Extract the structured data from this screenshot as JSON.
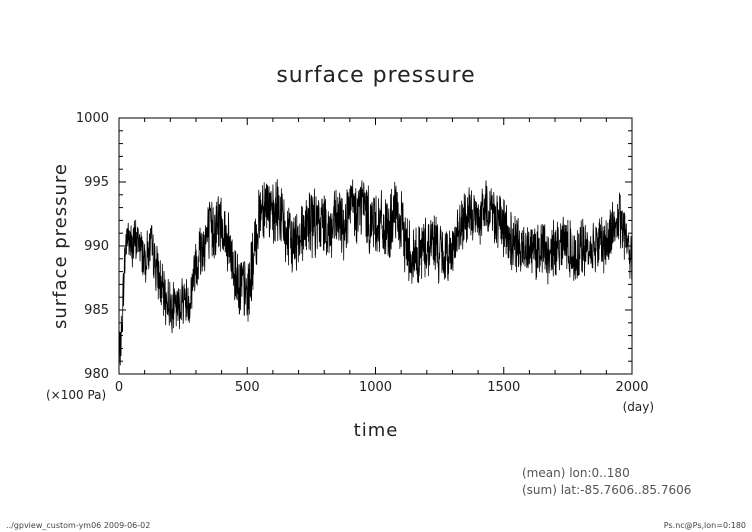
{
  "chart_data": {
    "type": "line",
    "title": "surface pressure",
    "xlabel": "time",
    "ylabel": "surface pressure",
    "xunit": "(day)",
    "yunit": "(×100 Pa)",
    "xlim": [
      0,
      2000
    ],
    "ylim": [
      980,
      1000
    ],
    "x_ticks": [
      "0",
      "500",
      "1000",
      "1500",
      "2000"
    ],
    "y_ticks": [
      "980",
      "985",
      "990",
      "995",
      "1000"
    ],
    "grid": false,
    "legend": "none",
    "series": [
      {
        "x": [
          0,
          10,
          20,
          30,
          50,
          75,
          100,
          125,
          150,
          175,
          200,
          225,
          250,
          275,
          300,
          325,
          350,
          375,
          400,
          425,
          450,
          475,
          500,
          525,
          550,
          575,
          600,
          625,
          650,
          675,
          700,
          725,
          750,
          775,
          800,
          825,
          850,
          875,
          900,
          925,
          950,
          975,
          1000,
          1025,
          1050,
          1075,
          1100,
          1125,
          1150,
          1175,
          1200,
          1225,
          1250,
          1275,
          1300,
          1325,
          1350,
          1375,
          1400,
          1425,
          1450,
          1475,
          1500,
          1525,
          1550,
          1575,
          1600,
          1625,
          1650,
          1675,
          1700,
          1725,
          1750,
          1775,
          1800,
          1825,
          1850,
          1875,
          1900,
          1925,
          1950,
          1975,
          2000
        ],
        "y": [
          981,
          983,
          988,
          991,
          990,
          990.5,
          989,
          990,
          988,
          986,
          985.5,
          985,
          986,
          985.5,
          989,
          990,
          991,
          991.5,
          992,
          990,
          988,
          987,
          986,
          989,
          993,
          993.5,
          992,
          993,
          991,
          990,
          991,
          991.5,
          992,
          991.5,
          992,
          991,
          992,
          991.5,
          993,
          992.5,
          993.5,
          992,
          992,
          991.5,
          991,
          992.5,
          991.5,
          990,
          989,
          989.5,
          990,
          990.5,
          989.5,
          989,
          990,
          991,
          992,
          992.5,
          992,
          993,
          993,
          992,
          991.5,
          990.5,
          990,
          989.5,
          990.5,
          989.5,
          990,
          989,
          990,
          990.5,
          990,
          989,
          990,
          989.5,
          990,
          990.5,
          990,
          991.5,
          992,
          991,
          989
        ]
      }
    ]
  },
  "notes": [
    "(mean) lon:0..180",
    "(sum) lat:-85.7606..85.7606"
  ],
  "footer": {
    "left": "../gpview_custom-ym06  2009-06-02",
    "right": "Ps.nc@Ps,lon=0:180"
  }
}
